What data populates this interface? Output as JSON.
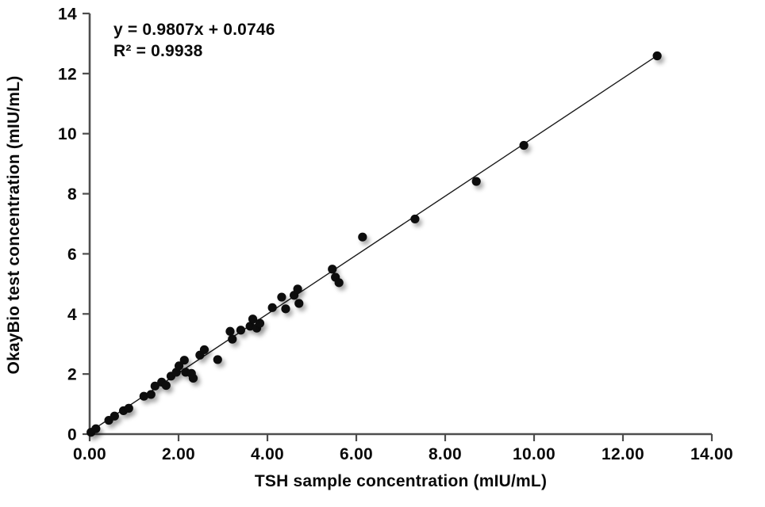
{
  "chart_data": {
    "type": "scatter",
    "title": "",
    "xlabel": "TSH sample concentration (mIU/mL)",
    "ylabel": "OkayBio test concentration (mIU/mL)",
    "equation": "y = 0.9807x + 0.0746",
    "r2": "R² = 0.9938",
    "xlim": [
      0,
      14
    ],
    "ylim": [
      0,
      14
    ],
    "grid": false,
    "legend": "none",
    "x_ticks": {
      "values": [
        0,
        2,
        4,
        6,
        8,
        10,
        12,
        14
      ],
      "labels": [
        "0.00",
        "2.00",
        "4.00",
        "6.00",
        "8.00",
        "10.00",
        "12.00",
        "14.00"
      ]
    },
    "y_ticks": {
      "values": [
        0,
        2,
        4,
        6,
        8,
        10,
        12,
        14
      ],
      "labels": [
        "0",
        "2",
        "4",
        "6",
        "8",
        "10",
        "12",
        "14"
      ]
    },
    "trendline": {
      "slope": 0.9807,
      "intercept": 0.0746,
      "x_start": 0,
      "x_end": 12.77
    },
    "points": [
      [
        0.03,
        0.06
      ],
      [
        0.14,
        0.18
      ],
      [
        0.43,
        0.46
      ],
      [
        0.56,
        0.6
      ],
      [
        0.76,
        0.78
      ],
      [
        0.88,
        0.86
      ],
      [
        1.22,
        1.26
      ],
      [
        1.38,
        1.32
      ],
      [
        1.47,
        1.6
      ],
      [
        1.62,
        1.73
      ],
      [
        1.72,
        1.62
      ],
      [
        1.83,
        1.93
      ],
      [
        1.95,
        2.06
      ],
      [
        2.01,
        2.27
      ],
      [
        2.13,
        2.46
      ],
      [
        2.16,
        2.06
      ],
      [
        2.29,
        2.02
      ],
      [
        2.33,
        1.86
      ],
      [
        2.48,
        2.63
      ],
      [
        2.58,
        2.81
      ],
      [
        2.88,
        2.48
      ],
      [
        3.16,
        3.42
      ],
      [
        3.21,
        3.16
      ],
      [
        3.4,
        3.46
      ],
      [
        3.61,
        3.59
      ],
      [
        3.67,
        3.83
      ],
      [
        3.76,
        3.53
      ],
      [
        3.83,
        3.69
      ],
      [
        4.11,
        4.21
      ],
      [
        4.32,
        4.56
      ],
      [
        4.41,
        4.17
      ],
      [
        4.6,
        4.62
      ],
      [
        4.68,
        4.83
      ],
      [
        4.71,
        4.35
      ],
      [
        5.46,
        5.49
      ],
      [
        5.53,
        5.22
      ],
      [
        5.61,
        5.04
      ],
      [
        6.14,
        6.56
      ],
      [
        7.32,
        7.16
      ],
      [
        8.7,
        8.41
      ],
      [
        9.77,
        9.61
      ],
      [
        12.77,
        12.59
      ]
    ],
    "colors": {
      "point": "#0b0b0b",
      "trendline": "#1a1a1a",
      "axis": "#4d4d4d",
      "text": "#0a0a0a",
      "background": "#ffffff"
    }
  }
}
